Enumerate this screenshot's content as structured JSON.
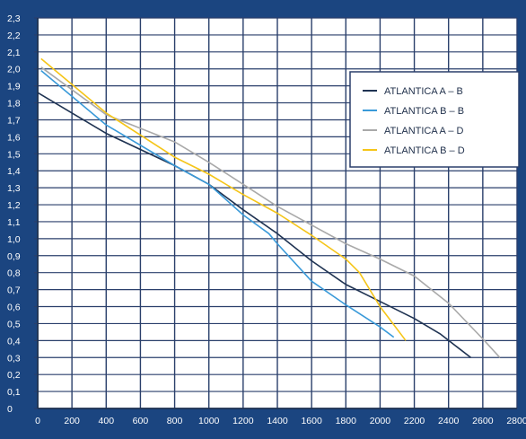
{
  "chart_data": {
    "type": "line",
    "title": "",
    "xlabel": "",
    "ylabel": "",
    "xlim": [
      0,
      2800
    ],
    "ylim": [
      0,
      2.3
    ],
    "x_ticks": [
      "0",
      "200",
      "400",
      "600",
      "800",
      "1000",
      "1200",
      "1400",
      "1600",
      "1800",
      "2000",
      "2200",
      "2400",
      "2600",
      "2800"
    ],
    "y_ticks": [
      "0",
      "0,1",
      "0,2",
      "0,3",
      "0,4",
      "0,5",
      "0,6",
      "0,7",
      "0,8",
      "0,9",
      "1,0",
      "1,1",
      "1,2",
      "1,3",
      "1,4",
      "1,5",
      "1,6",
      "1,7",
      "1,8",
      "1,9",
      "2,0",
      "2,1",
      "2,2",
      "2,3"
    ],
    "grid": true,
    "legend_position": "top-right",
    "series": [
      {
        "name": "ATLANTICA A – B",
        "color": "#1f3352",
        "points": [
          [
            0,
            1.86
          ],
          [
            400,
            1.62
          ],
          [
            800,
            1.43
          ],
          [
            1000,
            1.32
          ],
          [
            1200,
            1.17
          ],
          [
            1400,
            1.03
          ],
          [
            1600,
            0.87
          ],
          [
            1800,
            0.73
          ],
          [
            2000,
            0.63
          ],
          [
            2200,
            0.53
          ],
          [
            2350,
            0.44
          ],
          [
            2530,
            0.3
          ]
        ]
      },
      {
        "name": "ATLANTICA B – B",
        "color": "#3a9ad9",
        "points": [
          [
            20,
            1.99
          ],
          [
            400,
            1.67
          ],
          [
            800,
            1.43
          ],
          [
            1000,
            1.32
          ],
          [
            1200,
            1.14
          ],
          [
            1350,
            1.03
          ],
          [
            1400,
            0.97
          ],
          [
            1600,
            0.75
          ],
          [
            1800,
            0.61
          ],
          [
            2000,
            0.48
          ],
          [
            2080,
            0.42
          ]
        ]
      },
      {
        "name": "ATLANTICA A – D",
        "color": "#a9a9a9",
        "points": [
          [
            20,
            2.01
          ],
          [
            400,
            1.73
          ],
          [
            800,
            1.57
          ],
          [
            1000,
            1.45
          ],
          [
            1200,
            1.32
          ],
          [
            1400,
            1.19
          ],
          [
            1600,
            1.08
          ],
          [
            1800,
            0.97
          ],
          [
            2000,
            0.88
          ],
          [
            2200,
            0.78
          ],
          [
            2400,
            0.62
          ],
          [
            2600,
            0.41
          ],
          [
            2700,
            0.3
          ]
        ]
      },
      {
        "name": "ATLANTICA B – D",
        "color": "#f5c518",
        "points": [
          [
            20,
            2.06
          ],
          [
            400,
            1.74
          ],
          [
            800,
            1.48
          ],
          [
            1000,
            1.38
          ],
          [
            1200,
            1.26
          ],
          [
            1400,
            1.15
          ],
          [
            1600,
            1.02
          ],
          [
            1800,
            0.88
          ],
          [
            1880,
            0.8
          ],
          [
            2000,
            0.6
          ],
          [
            2150,
            0.4
          ]
        ]
      }
    ]
  }
}
